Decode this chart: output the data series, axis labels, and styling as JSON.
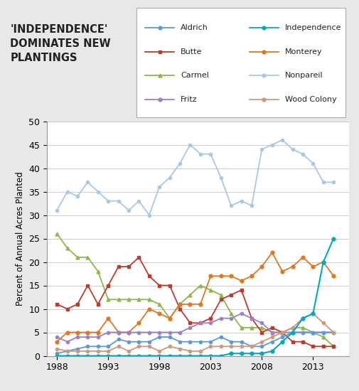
{
  "title": "'INDEPENDENCE'\nDOMINATES NEW\nPLANTINGS",
  "ylabel": "Percent of Annual Acres Planted",
  "ylim": [
    0,
    50
  ],
  "yticks": [
    0,
    5,
    10,
    15,
    20,
    25,
    30,
    35,
    40,
    45,
    50
  ],
  "xlim": [
    1987,
    2016.5
  ],
  "xticks": [
    1988,
    1993,
    1998,
    2003,
    2008,
    2013
  ],
  "background_color": "#ffffff",
  "fig_background": "#e8e8e8",
  "series": {
    "Nonpareil": {
      "color": "#a8c8e8",
      "marker": "o",
      "linestyle": "-",
      "linewidth": 1.3,
      "markersize": 3,
      "data": {
        "1988": 31,
        "1989": 35,
        "1990": 34,
        "1991": 37,
        "1992": 35,
        "1993": 33,
        "1994": 33,
        "1995": 31,
        "1996": 33,
        "1997": 30,
        "1998": 36,
        "1999": 38,
        "2000": 41,
        "2001": 45,
        "2002": 43,
        "2003": 43,
        "2004": 38,
        "2005": 32,
        "2006": 33,
        "2007": 32,
        "2008": 44,
        "2009": 45,
        "2010": 46,
        "2011": 44,
        "2012": 43,
        "2013": 41,
        "2014": 37,
        "2015": 37
      }
    },
    "Carmel": {
      "color": "#8db84a",
      "marker": "^",
      "linestyle": "-",
      "linewidth": 1.3,
      "markersize": 3.5,
      "data": {
        "1988": 26,
        "1989": 23,
        "1990": 21,
        "1991": 21,
        "1992": 18,
        "1993": 12,
        "1994": 12,
        "1995": 12,
        "1996": 12,
        "1997": 12,
        "1998": 11,
        "1999": 8,
        "2000": 11,
        "2001": 13,
        "2002": 15,
        "2003": 14,
        "2004": 13,
        "2005": 9,
        "2006": 6,
        "2007": 6,
        "2008": 6,
        "2009": 5,
        "2010": 5,
        "2011": 6,
        "2012": 6,
        "2013": 5,
        "2014": 4,
        "2015": 2
      }
    },
    "Butte": {
      "color": "#c0392b",
      "marker": "s",
      "linestyle": "-",
      "linewidth": 1.3,
      "markersize": 3.5,
      "data": {
        "1988": 11,
        "1989": 10,
        "1990": 11,
        "1991": 15,
        "1992": 11,
        "1993": 15,
        "1994": 19,
        "1995": 19,
        "1996": 21,
        "1997": 17,
        "1998": 15,
        "1999": 15,
        "2000": 10,
        "2001": 7,
        "2002": 7,
        "2003": 8,
        "2004": 12,
        "2005": 13,
        "2006": 14,
        "2007": 8,
        "2008": 5,
        "2009": 6,
        "2010": 5,
        "2011": 3,
        "2012": 3,
        "2013": 2,
        "2014": 2,
        "2015": 2
      }
    },
    "Monterey": {
      "color": "#e07820",
      "marker": "o",
      "linestyle": "-",
      "linewidth": 1.3,
      "markersize": 3.5,
      "data": {
        "1988": 3,
        "1989": 5,
        "1990": 5,
        "1991": 5,
        "1992": 5,
        "1993": 8,
        "1994": 5,
        "1995": 5,
        "1996": 7,
        "1997": 10,
        "1998": 9,
        "1999": 8,
        "2000": 11,
        "2001": 11,
        "2002": 11,
        "2003": 17,
        "2004": 17,
        "2005": 17,
        "2006": 16,
        "2007": 17,
        "2008": 19,
        "2009": 22,
        "2010": 18,
        "2011": 19,
        "2012": 21,
        "2013": 19,
        "2014": 20,
        "2015": 17
      }
    },
    "Aldrich": {
      "color": "#5b9bd5",
      "marker": "o",
      "linestyle": "-",
      "linewidth": 1.3,
      "markersize": 3,
      "data": {
        "1988": 0.5,
        "1989": 1,
        "1990": 1.5,
        "1991": 2,
        "1992": 2,
        "1993": 2,
        "1994": 3.5,
        "1995": 3,
        "1996": 3,
        "1997": 3,
        "1998": 4,
        "1999": 4,
        "2000": 3,
        "2001": 3,
        "2002": 3,
        "2003": 3,
        "2004": 4,
        "2005": 3,
        "2006": 3,
        "2007": 2,
        "2008": 2,
        "2009": 3,
        "2010": 4,
        "2011": 5,
        "2012": 5,
        "2013": 5,
        "2014": 5,
        "2015": 5
      }
    },
    "Fritz": {
      "color": "#9b7fc7",
      "marker": "o",
      "linestyle": "-",
      "linewidth": 1.3,
      "markersize": 3,
      "data": {
        "1988": 4,
        "1989": 3,
        "1990": 4,
        "1991": 4,
        "1992": 4,
        "1993": 5,
        "1994": 5,
        "1995": 5,
        "1996": 5,
        "1997": 5,
        "1998": 5,
        "1999": 5,
        "2000": 5,
        "2001": 6,
        "2002": 7,
        "2003": 7,
        "2004": 8,
        "2005": 8,
        "2006": 9,
        "2007": 8,
        "2008": 7,
        "2009": 5,
        "2010": 5,
        "2011": 5,
        "2012": 5,
        "2013": 5,
        "2014": 5,
        "2015": 5
      }
    },
    "Wood Colony": {
      "color": "#d4957a",
      "marker": "o",
      "linestyle": "-",
      "linewidth": 1.3,
      "markersize": 3,
      "data": {
        "1988": 1.5,
        "1989": 1,
        "1990": 1,
        "1991": 1,
        "1992": 1,
        "1993": 1,
        "1994": 2,
        "1995": 1,
        "1996": 2,
        "1997": 2,
        "1998": 1,
        "1999": 2,
        "2000": 1.5,
        "2001": 1,
        "2002": 1,
        "2003": 2,
        "2004": 2,
        "2005": 2,
        "2006": 2,
        "2007": 2,
        "2008": 3,
        "2009": 4,
        "2010": 5,
        "2011": 6,
        "2012": 8,
        "2013": 9,
        "2014": 7,
        "2015": 5
      }
    },
    "Independence": {
      "color": "#00a8c0",
      "marker": "o",
      "linestyle": "-",
      "linewidth": 1.5,
      "markersize": 3.5,
      "data": {
        "1988": 0,
        "1989": 0,
        "1990": 0,
        "1991": 0,
        "1992": 0,
        "1993": 0,
        "1994": 0,
        "1995": 0,
        "1996": 0,
        "1997": 0,
        "1998": 0,
        "1999": 0,
        "2000": 0,
        "2001": 0,
        "2002": 0,
        "2003": 0,
        "2004": 0,
        "2005": 0.5,
        "2006": 0.5,
        "2007": 0.5,
        "2008": 0.5,
        "2009": 1,
        "2010": 3,
        "2011": 5,
        "2012": 8,
        "2013": 9,
        "2014": 20,
        "2015": 25
      }
    }
  },
  "legend_order_col1": [
    "Aldrich",
    "Butte",
    "Carmel",
    "Fritz"
  ],
  "legend_order_col2": [
    "Independence",
    "Monterey",
    "Nonpareil",
    "Wood Colony"
  ]
}
